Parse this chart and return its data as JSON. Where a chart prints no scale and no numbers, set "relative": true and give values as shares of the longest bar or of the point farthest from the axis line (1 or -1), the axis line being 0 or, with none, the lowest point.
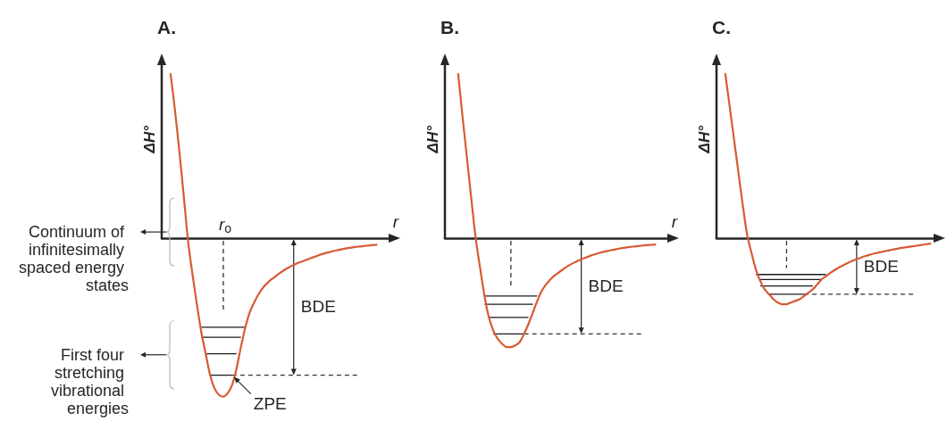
{
  "chart_data": [
    {
      "type": "line",
      "title": "A.",
      "xlabel": "r",
      "ylabel": "ΔH°",
      "relative": true,
      "categories": [
        null,
        null,
        null,
        null,
        null,
        null,
        null,
        null,
        null,
        null,
        null,
        null,
        null,
        null,
        null,
        null,
        null,
        null,
        null,
        null,
        null,
        null,
        null,
        null,
        null,
        null,
        null,
        null,
        null,
        null,
        null,
        null,
        null,
        null,
        null,
        null,
        null,
        null,
        null,
        null,
        null,
        null,
        null,
        null,
        null,
        null,
        null,
        null,
        null,
        null,
        null,
        null,
        null,
        null
      ],
      "series": [
        {
          "color": "#d75a34",
          "values": [
            null,
            null,
            1.0,
            0.78,
            0.53,
            0.26,
            -0.02,
            -0.22,
            -0.4,
            -0.57,
            -0.7,
            -0.83,
            -0.91,
            -0.95,
            -0.96,
            -0.94,
            -0.89,
            -0.79,
            -0.66,
            -0.54,
            -0.45,
            -0.39,
            -0.34,
            -0.3,
            -0.272,
            -0.248,
            -0.228,
            -0.208,
            -0.19,
            -0.175,
            -0.162,
            -0.15,
            -0.14,
            -0.13,
            -0.12,
            -0.11,
            -0.1,
            -0.092,
            -0.085,
            -0.078,
            -0.072,
            -0.066,
            -0.061,
            -0.057,
            -0.053,
            -0.05,
            -0.047,
            -0.044,
            -0.041,
            -0.039,
            null,
            null,
            null,
            null
          ]
        },
        {
          "color": "#1a1a1a",
          "values": [
            null,
            null,
            null,
            null,
            null,
            null,
            null,
            null,
            null,
            -0.54,
            -0.54,
            -0.54,
            -0.54,
            -0.54,
            -0.54,
            -0.54,
            -0.54,
            -0.54,
            -0.54,
            -0.54,
            null,
            null,
            null,
            null,
            null,
            null,
            null,
            null,
            null,
            null,
            null,
            null,
            null,
            null,
            null,
            null,
            null,
            null,
            null,
            null,
            null,
            null,
            null,
            null,
            null,
            null,
            null,
            null,
            null,
            null,
            null,
            null,
            null,
            null
          ]
        },
        {
          "color": "#1a1a1a",
          "values": [
            null,
            null,
            null,
            null,
            null,
            null,
            null,
            null,
            null,
            -0.6,
            -0.6,
            -0.6,
            -0.6,
            -0.6,
            -0.6,
            -0.6,
            -0.6,
            -0.6,
            -0.6,
            null,
            null,
            null,
            null,
            null,
            null,
            null,
            null,
            null,
            null,
            null,
            null,
            null,
            null,
            null,
            null,
            null,
            null,
            null,
            null,
            null,
            null,
            null,
            null,
            null,
            null,
            null,
            null,
            null,
            null,
            null,
            null,
            null,
            null,
            null
          ]
        },
        {
          "color": "#1a1a1a",
          "values": [
            null,
            null,
            null,
            null,
            null,
            null,
            null,
            null,
            null,
            null,
            -0.7,
            -0.7,
            -0.7,
            -0.7,
            -0.7,
            -0.7,
            -0.7,
            -0.7,
            null,
            null,
            null,
            null,
            null,
            null,
            null,
            null,
            null,
            null,
            null,
            null,
            null,
            null,
            null,
            null,
            null,
            null,
            null,
            null,
            null,
            null,
            null,
            null,
            null,
            null,
            null,
            null,
            null,
            null,
            null,
            null,
            null,
            null,
            null,
            null
          ]
        },
        {
          "color": "#1a1a1a",
          "values": [
            null,
            null,
            null,
            null,
            null,
            null,
            null,
            null,
            null,
            null,
            null,
            -0.83,
            -0.83,
            -0.83,
            -0.83,
            -0.83,
            -0.83,
            null,
            null,
            null,
            null,
            null,
            null,
            null,
            null,
            null,
            null,
            null,
            null,
            null,
            null,
            null,
            null,
            null,
            null,
            null,
            null,
            null,
            null,
            null,
            null,
            null,
            null,
            null,
            null,
            null,
            null,
            null,
            null,
            null,
            null,
            null,
            null,
            null
          ]
        },
        {
          "color": "#333333",
          "line_style": "dashed",
          "values": [
            null,
            null,
            null,
            null,
            null,
            null,
            null,
            null,
            null,
            null,
            null,
            null,
            null,
            null,
            null,
            null,
            -0.83,
            -0.83,
            -0.83,
            -0.83,
            -0.83,
            -0.83,
            -0.83,
            -0.83,
            -0.83,
            -0.83,
            -0.83,
            -0.83,
            -0.83,
            -0.83,
            -0.83,
            -0.83,
            -0.83,
            -0.83,
            -0.83,
            -0.83,
            -0.83,
            -0.83,
            -0.83,
            -0.83,
            -0.83,
            -0.83,
            -0.83,
            -0.83,
            -0.83,
            -0.83,
            null,
            null,
            null,
            null,
            null,
            null,
            null,
            null
          ]
        }
      ],
      "annotations": [
        "Continuum of infinitesimally spaced energy states",
        "First four stretching vibrational energies",
        "r$_{o}$",
        "BDE",
        {
          "text": "ZPE",
          "y": -0.83
        }
      ]
    },
    {
      "type": "line",
      "title": "B.",
      "xlabel": "r",
      "ylabel": "ΔH°",
      "relative": true,
      "categories": [
        null,
        null,
        null,
        null,
        null,
        null,
        null,
        null,
        null,
        null,
        null,
        null,
        null,
        null,
        null,
        null,
        null,
        null,
        null,
        null,
        null,
        null,
        null,
        null,
        null,
        null,
        null,
        null,
        null,
        null,
        null,
        null,
        null,
        null,
        null,
        null,
        null,
        null,
        null,
        null,
        null,
        null,
        null,
        null,
        null,
        null,
        null,
        null,
        null,
        null,
        null,
        null,
        null
      ],
      "series": [
        {
          "color": "#d75a34",
          "values": [
            null,
            null,
            null,
            1.0,
            0.74,
            0.49,
            0.24,
            0.0,
            -0.18,
            -0.35,
            -0.48,
            -0.56,
            -0.61,
            -0.64,
            -0.66,
            -0.66,
            -0.65,
            -0.63,
            -0.58,
            -0.52,
            -0.45,
            -0.38,
            -0.32,
            -0.28,
            -0.25,
            -0.225,
            -0.205,
            -0.186,
            -0.168,
            -0.153,
            -0.14,
            -0.128,
            -0.117,
            -0.107,
            -0.098,
            -0.09,
            -0.083,
            -0.077,
            -0.071,
            -0.066,
            -0.061,
            -0.057,
            -0.053,
            -0.05,
            -0.047,
            -0.044,
            -0.042,
            -0.04,
            -0.038,
            null,
            null,
            null,
            null
          ]
        },
        {
          "color": "#1a1a1a",
          "values": [
            null,
            null,
            null,
            null,
            null,
            null,
            null,
            null,
            null,
            -0.35,
            -0.35,
            -0.35,
            -0.35,
            -0.35,
            -0.35,
            -0.35,
            -0.35,
            -0.35,
            -0.35,
            -0.35,
            -0.35,
            -0.35,
            null,
            null,
            null,
            null,
            null,
            null,
            null,
            null,
            null,
            null,
            null,
            null,
            null,
            null,
            null,
            null,
            null,
            null,
            null,
            null,
            null,
            null,
            null,
            null,
            null,
            null,
            null,
            null,
            null,
            null,
            null
          ]
        },
        {
          "color": "#1a1a1a",
          "values": [
            null,
            null,
            null,
            null,
            null,
            null,
            null,
            null,
            null,
            -0.4,
            -0.4,
            -0.4,
            -0.4,
            -0.4,
            -0.4,
            -0.4,
            -0.4,
            -0.4,
            -0.4,
            -0.4,
            -0.4,
            null,
            null,
            null,
            null,
            null,
            null,
            null,
            null,
            null,
            null,
            null,
            null,
            null,
            null,
            null,
            null,
            null,
            null,
            null,
            null,
            null,
            null,
            null,
            null,
            null,
            null,
            null,
            null,
            null,
            null,
            null,
            null
          ]
        },
        {
          "color": "#1a1a1a",
          "values": [
            null,
            null,
            null,
            null,
            null,
            null,
            null,
            null,
            null,
            null,
            -0.48,
            -0.48,
            -0.48,
            -0.48,
            -0.48,
            -0.48,
            -0.48,
            -0.48,
            -0.48,
            -0.48,
            null,
            null,
            null,
            null,
            null,
            null,
            null,
            null,
            null,
            null,
            null,
            null,
            null,
            null,
            null,
            null,
            null,
            null,
            null,
            null,
            null,
            null,
            null,
            null,
            null,
            null,
            null,
            null,
            null,
            null,
            null,
            null,
            null
          ]
        },
        {
          "color": "#1a1a1a",
          "values": [
            null,
            null,
            null,
            null,
            null,
            null,
            null,
            null,
            null,
            null,
            null,
            -0.58,
            -0.58,
            -0.58,
            -0.58,
            -0.58,
            -0.58,
            -0.58,
            -0.58,
            null,
            null,
            null,
            null,
            null,
            null,
            null,
            null,
            null,
            null,
            null,
            null,
            null,
            null,
            null,
            null,
            null,
            null,
            null,
            null,
            null,
            null,
            null,
            null,
            null,
            null,
            null,
            null,
            null,
            null,
            null,
            null,
            null,
            null
          ]
        },
        {
          "color": "#333333",
          "line_style": "dashed",
          "values": [
            null,
            null,
            null,
            null,
            null,
            null,
            null,
            null,
            null,
            null,
            null,
            null,
            null,
            null,
            null,
            null,
            null,
            null,
            -0.58,
            -0.58,
            -0.58,
            -0.58,
            -0.58,
            -0.58,
            -0.58,
            -0.58,
            -0.58,
            -0.58,
            -0.58,
            -0.58,
            -0.58,
            -0.58,
            -0.58,
            -0.58,
            -0.58,
            -0.58,
            -0.58,
            -0.58,
            -0.58,
            -0.58,
            -0.58,
            -0.58,
            -0.58,
            -0.58,
            -0.58,
            -0.58,
            null,
            null,
            null,
            null,
            null,
            null,
            null
          ]
        }
      ],
      "annotations": [
        "BDE"
      ]
    },
    {
      "type": "line",
      "title": "C.",
      "ylabel": "ΔH°",
      "relative": true,
      "categories": [
        null,
        null,
        null,
        null,
        null,
        null,
        null,
        null,
        null,
        null,
        null,
        null,
        null,
        null,
        null,
        null,
        null,
        null,
        null,
        null,
        null,
        null,
        null,
        null,
        null,
        null,
        null,
        null,
        null,
        null,
        null,
        null,
        null,
        null,
        null,
        null,
        null,
        null,
        null,
        null,
        null,
        null,
        null,
        null,
        null,
        null,
        null,
        null,
        null,
        null,
        null,
        null
      ],
      "series": [
        {
          "color": "#d75a34",
          "values": [
            null,
            null,
            1.0,
            0.8,
            0.6,
            0.4,
            0.2,
            0.02,
            -0.09,
            -0.19,
            -0.26,
            -0.31,
            -0.34,
            -0.37,
            -0.39,
            -0.4,
            -0.4,
            -0.39,
            -0.38,
            -0.37,
            -0.35,
            -0.33,
            -0.31,
            -0.28,
            -0.25,
            -0.23,
            -0.21,
            -0.193,
            -0.177,
            -0.163,
            -0.15,
            -0.138,
            -0.127,
            -0.117,
            -0.108,
            -0.1,
            -0.093,
            -0.087,
            -0.081,
            -0.075,
            -0.07,
            -0.065,
            -0.06,
            -0.056,
            -0.052,
            -0.048,
            -0.044,
            -0.04,
            -0.036,
            -0.033,
            null,
            null
          ]
        },
        {
          "color": "#1a1a1a",
          "values": [
            null,
            null,
            null,
            null,
            null,
            null,
            null,
            null,
            null,
            -0.22,
            -0.22,
            -0.22,
            -0.22,
            -0.22,
            -0.22,
            -0.22,
            -0.22,
            -0.22,
            -0.22,
            -0.22,
            -0.22,
            -0.22,
            -0.22,
            -0.22,
            -0.22,
            -0.22,
            null,
            null,
            null,
            null,
            null,
            null,
            null,
            null,
            null,
            null,
            null,
            null,
            null,
            null,
            null,
            null,
            null,
            null,
            null,
            null,
            null,
            null,
            null,
            null,
            null,
            null
          ]
        },
        {
          "color": "#1a1a1a",
          "values": [
            null,
            null,
            null,
            null,
            null,
            null,
            null,
            null,
            null,
            null,
            -0.25,
            -0.25,
            -0.25,
            -0.25,
            -0.25,
            -0.25,
            -0.25,
            -0.25,
            -0.25,
            -0.25,
            -0.25,
            -0.25,
            -0.25,
            -0.25,
            -0.25,
            null,
            null,
            null,
            null,
            null,
            null,
            null,
            null,
            null,
            null,
            null,
            null,
            null,
            null,
            null,
            null,
            null,
            null,
            null,
            null,
            null,
            null,
            null,
            null,
            null,
            null,
            null
          ]
        },
        {
          "color": "#1a1a1a",
          "values": [
            null,
            null,
            null,
            null,
            null,
            null,
            null,
            null,
            null,
            null,
            -0.29,
            -0.29,
            -0.29,
            -0.29,
            -0.29,
            -0.29,
            -0.29,
            -0.29,
            -0.29,
            -0.29,
            -0.29,
            -0.29,
            -0.29,
            null,
            null,
            null,
            null,
            null,
            null,
            null,
            null,
            null,
            null,
            null,
            null,
            null,
            null,
            null,
            null,
            null,
            null,
            null,
            null,
            null,
            null,
            null,
            null,
            null,
            null,
            null,
            null,
            null
          ]
        },
        {
          "color": "#1a1a1a",
          "values": [
            null,
            null,
            null,
            null,
            null,
            null,
            null,
            null,
            null,
            null,
            null,
            null,
            -0.34,
            -0.34,
            -0.34,
            -0.34,
            -0.34,
            -0.34,
            -0.34,
            -0.34,
            -0.34,
            null,
            null,
            null,
            null,
            null,
            null,
            null,
            null,
            null,
            null,
            null,
            null,
            null,
            null,
            null,
            null,
            null,
            null,
            null,
            null,
            null,
            null,
            null,
            null,
            null,
            null,
            null,
            null,
            null,
            null,
            null
          ]
        },
        {
          "color": "#333333",
          "line_style": "dashed",
          "values": [
            null,
            null,
            null,
            null,
            null,
            null,
            null,
            null,
            null,
            null,
            null,
            null,
            null,
            null,
            null,
            null,
            null,
            null,
            null,
            null,
            -0.34,
            -0.34,
            -0.34,
            -0.34,
            -0.34,
            -0.34,
            -0.34,
            -0.34,
            -0.34,
            -0.34,
            -0.34,
            -0.34,
            -0.34,
            -0.34,
            -0.34,
            -0.34,
            -0.34,
            -0.34,
            -0.34,
            -0.34,
            -0.34,
            -0.34,
            -0.34,
            -0.34,
            -0.34,
            -0.34,
            null,
            null,
            null,
            null,
            null,
            null
          ]
        }
      ],
      "annotations": [
        "BDE"
      ]
    }
  ]
}
